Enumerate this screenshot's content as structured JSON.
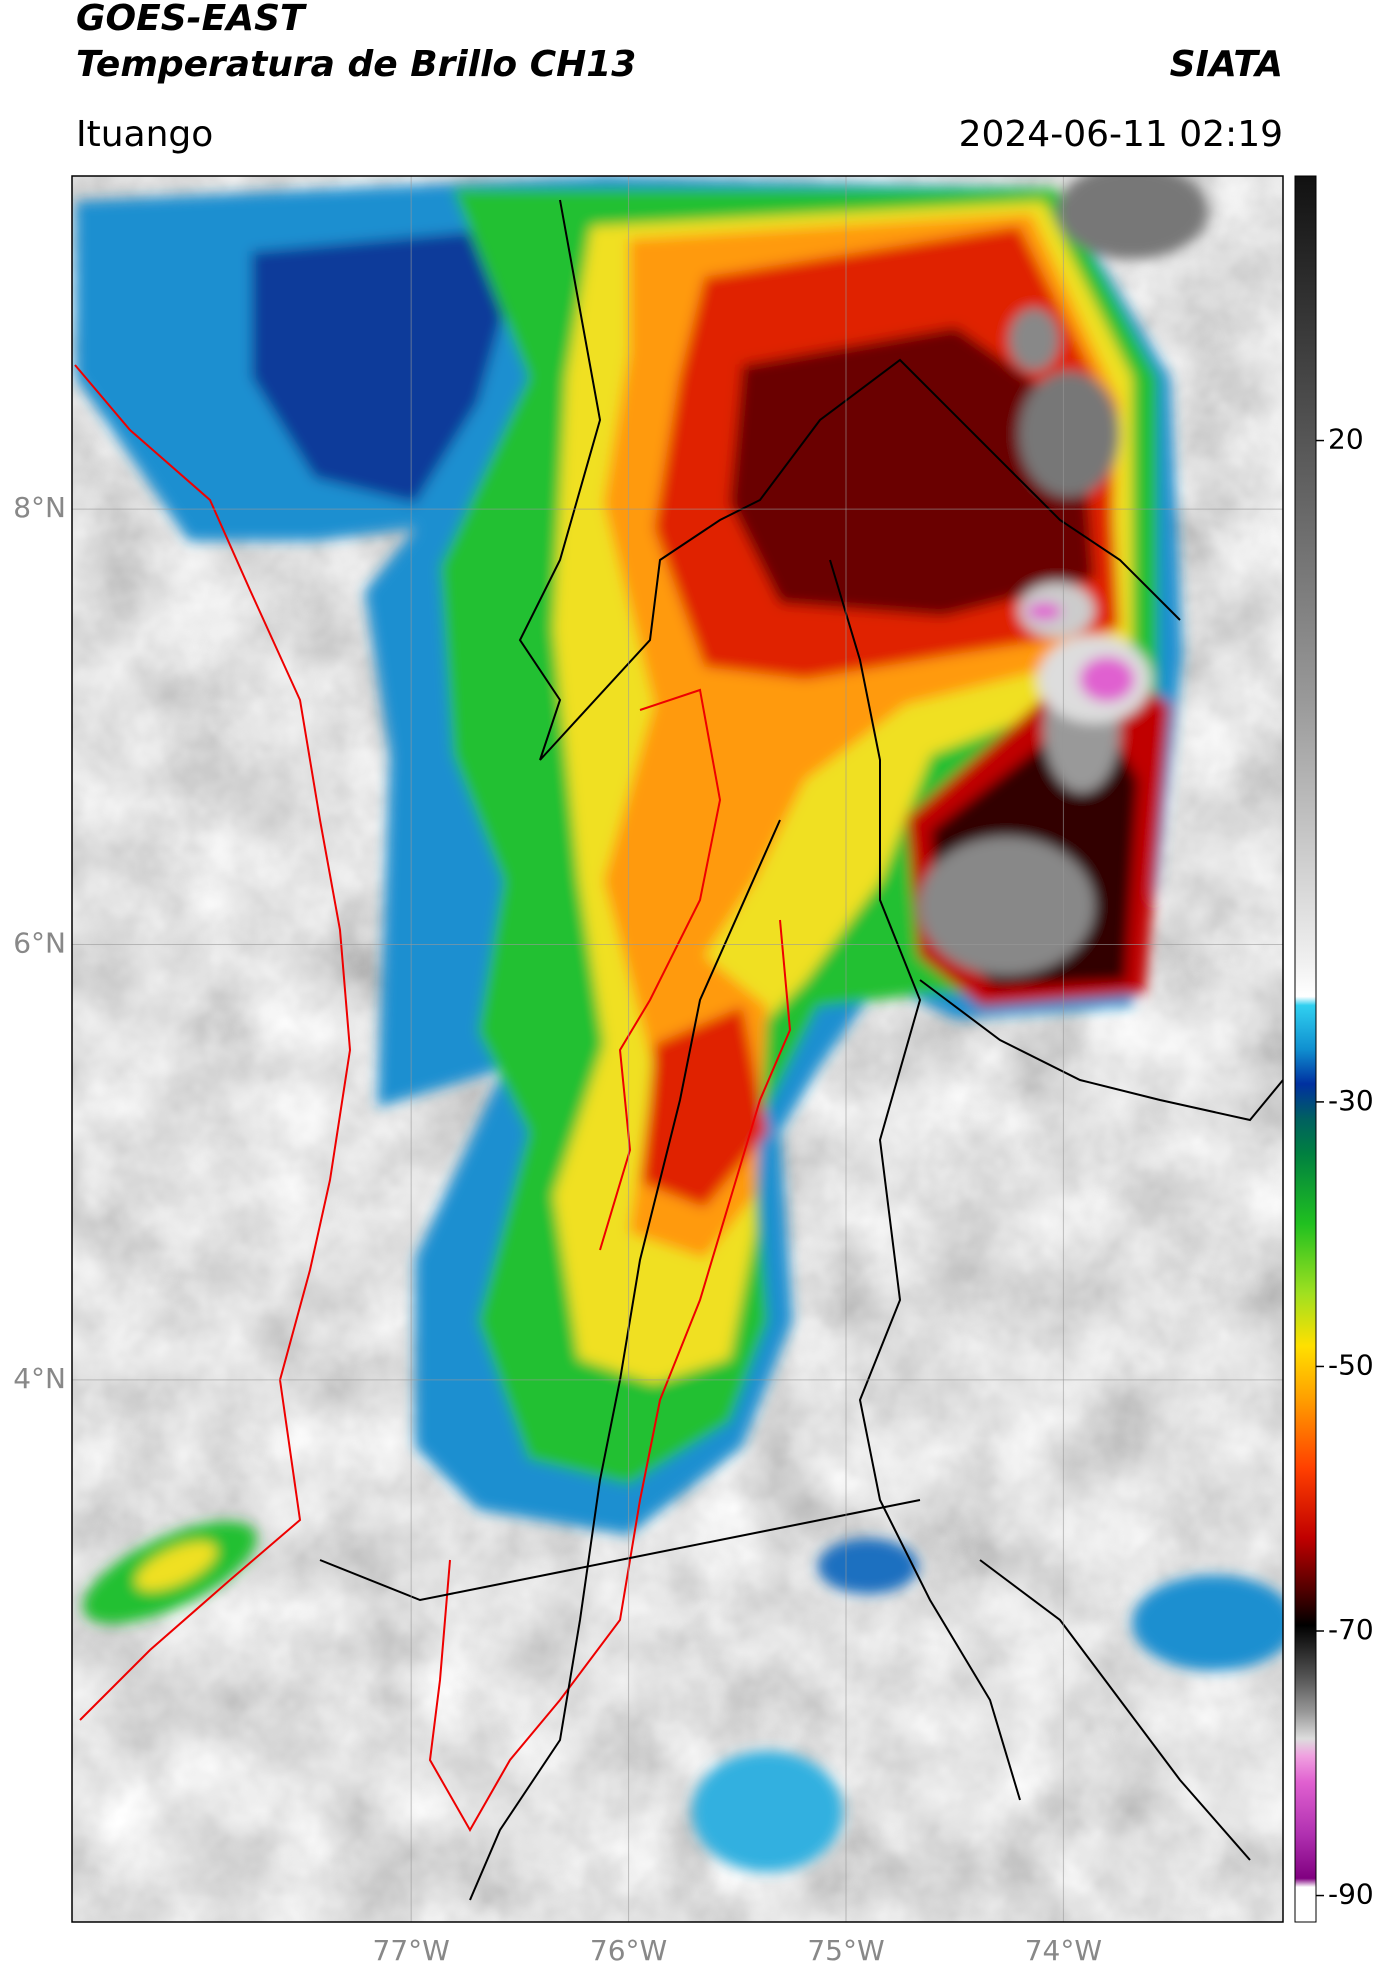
{
  "header": {
    "title": "GOES-EAST",
    "subtitle": "Temperatura de Brillo CH13",
    "source": "SIATA",
    "location": "Ituango",
    "datetime": "2024-06-11 02:19"
  },
  "map": {
    "xlim": [
      -78.56,
      -72.99
    ],
    "ylim": [
      1.51,
      9.53
    ],
    "xticks": [
      {
        "value": -77,
        "label": "77°W"
      },
      {
        "value": -76,
        "label": "76°W"
      },
      {
        "value": -75,
        "label": "75°W"
      },
      {
        "value": -74,
        "label": "74°W"
      }
    ],
    "yticks": [
      {
        "value": 8,
        "label": "8°N"
      },
      {
        "value": 6,
        "label": "6°N"
      },
      {
        "value": 4,
        "label": "4°N"
      }
    ],
    "grid": true
  },
  "colorbar": {
    "lim": [
      -92,
      40
    ],
    "ticks": [
      20,
      -30,
      -50,
      -70,
      -90
    ]
  }
}
